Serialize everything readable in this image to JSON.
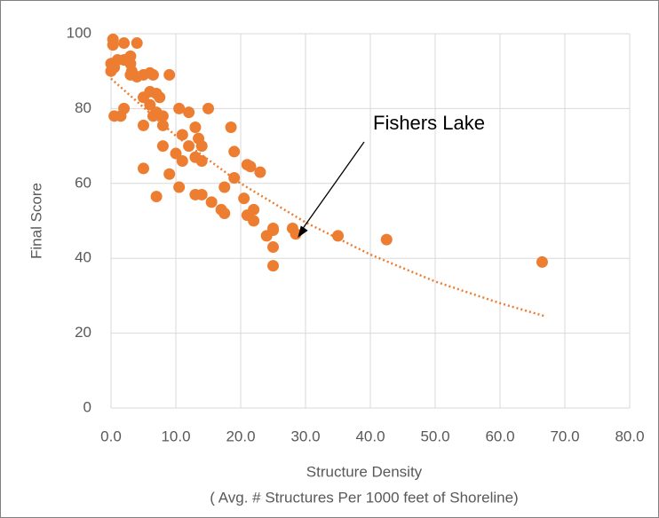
{
  "chart_data": {
    "type": "scatter",
    "ylabel": "Final Score",
    "xlabel": [
      "Structure Density",
      "( Avg. # Structures Per 1000 feet of Shoreline)"
    ],
    "xlim": [
      0,
      80
    ],
    "ylim": [
      0,
      100
    ],
    "xticks": [
      {
        "value": 0,
        "label": "0.0"
      },
      {
        "value": 10,
        "label": "10.0"
      },
      {
        "value": 20,
        "label": "20.0"
      },
      {
        "value": 30,
        "label": "30.0"
      },
      {
        "value": 40,
        "label": "40.0"
      },
      {
        "value": 50,
        "label": "50.0"
      },
      {
        "value": 60,
        "label": "60.0"
      },
      {
        "value": 70,
        "label": "70.0"
      },
      {
        "value": 80,
        "label": "80.0"
      }
    ],
    "yticks": [
      0,
      20,
      40,
      60,
      80,
      100
    ],
    "grid": true,
    "color": "#ed7d31",
    "x": [
      0.3,
      0.3,
      2,
      4,
      0,
      0.5,
      1,
      2,
      3,
      3,
      3.2,
      3,
      5,
      6,
      4,
      6.5,
      9,
      0,
      0.5,
      1.5,
      2,
      5,
      6,
      7,
      7.5,
      6,
      7,
      6.5,
      8,
      8,
      5,
      10.5,
      12,
      15,
      13,
      11,
      13.5,
      14,
      12,
      8,
      13,
      14,
      11,
      10,
      5,
      9,
      7,
      10.5,
      13,
      14,
      15.5,
      17,
      17.5,
      17.5,
      18.5,
      19,
      19,
      21,
      21.5,
      23,
      20.5,
      21,
      22,
      22,
      24,
      25,
      25,
      25,
      25,
      28,
      28.5,
      35,
      42.5,
      66.5
    ],
    "y": [
      98.5,
      97,
      97.5,
      97.5,
      92,
      91,
      93,
      93,
      94,
      92,
      90,
      89,
      89,
      89.5,
      88.5,
      89,
      89,
      90,
      78,
      78,
      80,
      83,
      84.5,
      84,
      83,
      81,
      79,
      78,
      78,
      75.5,
      75.5,
      80,
      79,
      80,
      75,
      73,
      72,
      70,
      70,
      70,
      67,
      66,
      66,
      68,
      64,
      62.5,
      56.5,
      59,
      57,
      57,
      55,
      53,
      52,
      59,
      75,
      68.5,
      61.5,
      65,
      64.5,
      63,
      56,
      51.5,
      53,
      50,
      46,
      48,
      47.5,
      43,
      38,
      48,
      46.5,
      46,
      45,
      39
    ],
    "trendline": {
      "x": [
        0,
        10,
        20,
        30,
        40,
        50,
        60,
        67
      ],
      "y": [
        88,
        72.7,
        60,
        49.6,
        41,
        33.8,
        28,
        24.5
      ]
    },
    "annotation": {
      "text": "Fishers Lake",
      "x": 28.8,
      "y": 45.5
    }
  }
}
